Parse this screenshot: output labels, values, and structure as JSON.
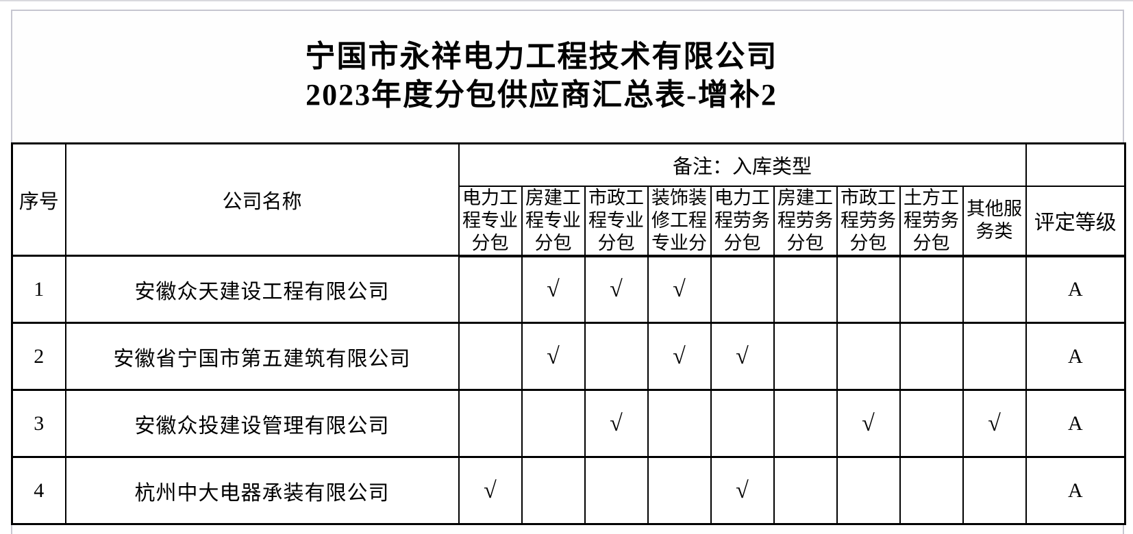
{
  "page": {
    "title_line1": "宁国市永祥电力工程技术有限公司",
    "title_line2": "2023年度分包供应商汇总表-增补2"
  },
  "table": {
    "headers": {
      "index": "序号",
      "company": "公司名称",
      "remark_group": "备注：入库类型",
      "grade": "评定等级"
    },
    "sub_columns": [
      "电力工程专业分包",
      "房建工程专业分包",
      "市政工程专业分包",
      "装饰装修工程专业分",
      "电力工程劳务分包",
      "房建工程劳务分包",
      "市政工程劳务分包",
      "土方工程劳务分包",
      "其他服务类"
    ],
    "check_glyph": "√",
    "rows": [
      {
        "index": "1",
        "company": "安徽众天建设工程有限公司",
        "checks": [
          0,
          1,
          1,
          1,
          0,
          0,
          0,
          0,
          0
        ],
        "grade": "A"
      },
      {
        "index": "2",
        "company": "安徽省宁国市第五建筑有限公司",
        "checks": [
          0,
          1,
          0,
          1,
          1,
          0,
          0,
          0,
          0
        ],
        "grade": "A"
      },
      {
        "index": "3",
        "company": "安徽众投建设管理有限公司",
        "checks": [
          0,
          0,
          1,
          0,
          0,
          0,
          1,
          0,
          1
        ],
        "grade": "A"
      },
      {
        "index": "4",
        "company": "杭州中大电器承装有限公司",
        "checks": [
          1,
          0,
          0,
          0,
          1,
          0,
          0,
          0,
          0
        ],
        "grade": "A"
      }
    ]
  },
  "colors": {
    "border": "#000000",
    "frame": "#c6c6d0",
    "background": "#ffffff",
    "text": "#000000"
  }
}
